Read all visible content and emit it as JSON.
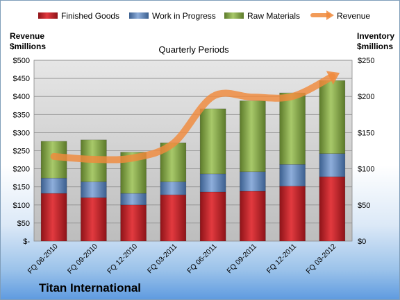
{
  "chart_data": {
    "type": "bar",
    "title": "Quarterly Periods",
    "company": "Titan International",
    "left_axis_label": [
      "Revenue",
      "$millions"
    ],
    "right_axis_label": [
      "Inventory",
      "$millions"
    ],
    "categories": [
      "FQ 06-2010",
      "FQ 09-2010",
      "FQ 12-2010",
      "FQ 03-2011",
      "FQ 06-2011",
      "FQ 09-2011",
      "FQ 12-2011",
      "FQ 03-2012"
    ],
    "stacked": true,
    "left_ylim": [
      0,
      500
    ],
    "right_ylim": [
      0,
      250
    ],
    "left_ticks": [
      "$-",
      "$50",
      "$100",
      "$150",
      "$200",
      "$250",
      "$300",
      "$350",
      "$400",
      "$450",
      "$500"
    ],
    "right_ticks": [
      "$0",
      "$50",
      "$100",
      "$150",
      "$200",
      "$250"
    ],
    "grid": true,
    "legend_position": "top",
    "series": [
      {
        "name": "Finished Goods",
        "axis": "right",
        "color": "#c0272d",
        "values": [
          66,
          60,
          50,
          64,
          68,
          69,
          76,
          89
        ]
      },
      {
        "name": "Work in Progress",
        "axis": "right",
        "color": "#4f81bd",
        "values": [
          21,
          22,
          16,
          18,
          25,
          27,
          30,
          32
        ]
      },
      {
        "name": "Raw Materials",
        "axis": "right",
        "color": "#77933c",
        "values": [
          51,
          58,
          57,
          54,
          90,
          98,
          99,
          101
        ]
      },
      {
        "name": "Revenue",
        "axis": "left",
        "type": "line",
        "color": "#f79646",
        "values": [
          234,
          226,
          230,
          270,
          400,
          398,
          400,
          455
        ]
      }
    ]
  }
}
